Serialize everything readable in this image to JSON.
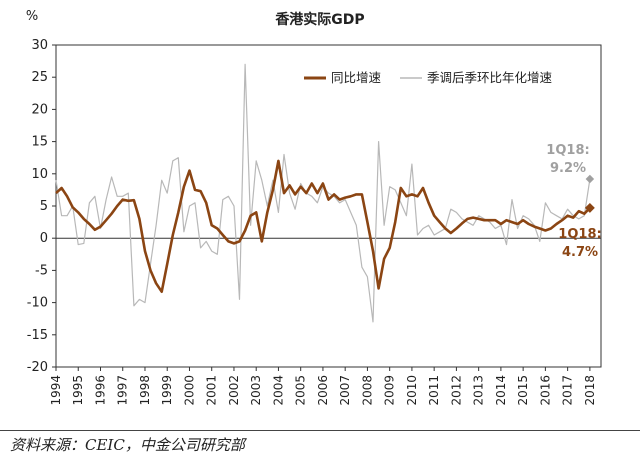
{
  "chart_data": {
    "type": "line",
    "title": "香港实际GDP",
    "unit_label": "%",
    "ylim": [
      -20,
      30
    ],
    "yticks": [
      30,
      25,
      20,
      15,
      10,
      5,
      0,
      -5,
      -10,
      -15,
      -20
    ],
    "xlim": [
      1994,
      2018.5
    ],
    "xticks": [
      "1994",
      "1995",
      "1996",
      "1997",
      "1998",
      "1999",
      "2000",
      "2001",
      "2002",
      "2003",
      "2004",
      "2005",
      "2006",
      "2007",
      "2008",
      "2009",
      "2010",
      "2011",
      "2012",
      "2013",
      "2014",
      "2015",
      "2016",
      "2017",
      "2018"
    ],
    "grid": false,
    "legend_position": "top-right",
    "series": [
      {
        "name": "同比增速",
        "color": "#8B4513",
        "x": [
          1994.0,
          1994.25,
          1994.5,
          1994.75,
          1995.0,
          1995.25,
          1995.5,
          1995.75,
          1996.0,
          1996.25,
          1996.5,
          1996.75,
          1997.0,
          1997.25,
          1997.5,
          1997.75,
          1998.0,
          1998.25,
          1998.5,
          1998.75,
          1999.0,
          1999.25,
          1999.5,
          1999.75,
          2000.0,
          2000.25,
          2000.5,
          2000.75,
          2001.0,
          2001.25,
          2001.5,
          2001.75,
          2002.0,
          2002.25,
          2002.5,
          2002.75,
          2003.0,
          2003.25,
          2003.5,
          2003.75,
          2004.0,
          2004.25,
          2004.5,
          2004.75,
          2005.0,
          2005.25,
          2005.5,
          2005.75,
          2006.0,
          2006.25,
          2006.5,
          2006.75,
          2007.0,
          2007.25,
          2007.5,
          2007.75,
          2008.0,
          2008.25,
          2008.5,
          2008.75,
          2009.0,
          2009.25,
          2009.5,
          2009.75,
          2010.0,
          2010.25,
          2010.5,
          2010.75,
          2011.0,
          2011.25,
          2011.5,
          2011.75,
          2012.0,
          2012.25,
          2012.5,
          2012.75,
          2013.0,
          2013.25,
          2013.5,
          2013.75,
          2014.0,
          2014.25,
          2014.5,
          2014.75,
          2015.0,
          2015.25,
          2015.5,
          2015.75,
          2016.0,
          2016.25,
          2016.5,
          2016.75,
          2017.0,
          2017.25,
          2017.5,
          2017.75,
          2018.0
        ],
        "values": [
          7.0,
          7.8,
          6.5,
          4.8,
          4.0,
          3.0,
          2.2,
          1.3,
          1.8,
          2.8,
          3.8,
          5.0,
          6.0,
          5.8,
          5.9,
          3.0,
          -2.0,
          -5.0,
          -7.0,
          -8.3,
          -4.0,
          0.5,
          4.0,
          8.0,
          10.5,
          7.5,
          7.3,
          5.5,
          2.0,
          1.5,
          0.5,
          -0.5,
          -0.8,
          -0.5,
          1.2,
          3.5,
          4.0,
          -0.5,
          4.0,
          7.5,
          12.0,
          7.0,
          8.2,
          6.8,
          8.0,
          7.0,
          8.5,
          7.0,
          8.5,
          6.0,
          6.8,
          6.0,
          6.3,
          6.5,
          6.8,
          6.8,
          2.5,
          -2.0,
          -7.8,
          -3.2,
          -1.5,
          2.5,
          7.8,
          6.5,
          6.8,
          6.5,
          7.8,
          5.5,
          3.5,
          2.5,
          1.5,
          0.8,
          1.5,
          2.3,
          3.0,
          3.2,
          3.0,
          2.8,
          2.8,
          2.8,
          2.2,
          2.8,
          2.5,
          2.2,
          2.8,
          2.2,
          1.8,
          1.5,
          1.2,
          1.5,
          2.2,
          2.8,
          3.5,
          3.2,
          4.2,
          3.8,
          4.7
        ]
      },
      {
        "name": "季调后季环比年化增速",
        "color": "#B8B8B8",
        "x": [
          1994.0,
          1994.25,
          1994.5,
          1994.75,
          1995.0,
          1995.25,
          1995.5,
          1995.75,
          1996.0,
          1996.25,
          1996.5,
          1996.75,
          1997.0,
          1997.25,
          1997.5,
          1997.75,
          1998.0,
          1998.25,
          1998.5,
          1998.75,
          1999.0,
          1999.25,
          1999.5,
          1999.75,
          2000.0,
          2000.25,
          2000.5,
          2000.75,
          2001.0,
          2001.25,
          2001.5,
          2001.75,
          2002.0,
          2002.25,
          2002.5,
          2002.75,
          2003.0,
          2003.25,
          2003.5,
          2003.75,
          2004.0,
          2004.25,
          2004.5,
          2004.75,
          2005.0,
          2005.25,
          2005.5,
          2005.75,
          2006.0,
          2006.25,
          2006.5,
          2006.75,
          2007.0,
          2007.25,
          2007.5,
          2007.75,
          2008.0,
          2008.25,
          2008.5,
          2008.75,
          2009.0,
          2009.25,
          2009.5,
          2009.75,
          2010.0,
          2010.25,
          2010.5,
          2010.75,
          2011.0,
          2011.25,
          2011.5,
          2011.75,
          2012.0,
          2012.25,
          2012.5,
          2012.75,
          2013.0,
          2013.25,
          2013.5,
          2013.75,
          2014.0,
          2014.25,
          2014.5,
          2014.75,
          2015.0,
          2015.25,
          2015.5,
          2015.75,
          2016.0,
          2016.25,
          2016.5,
          2016.75,
          2017.0,
          2017.25,
          2017.5,
          2017.75,
          2018.0
        ],
        "values": [
          9.0,
          3.5,
          3.5,
          5.0,
          -1.0,
          -0.8,
          5.5,
          6.5,
          1.5,
          6.0,
          9.5,
          6.5,
          6.5,
          7.0,
          -10.5,
          -9.5,
          -10.0,
          -4.0,
          2.0,
          9.0,
          7.0,
          12.0,
          12.5,
          1.0,
          5.0,
          5.5,
          -1.5,
          -0.5,
          -2.0,
          -2.5,
          6.0,
          6.5,
          5.0,
          -9.5,
          27.0,
          2.0,
          12.0,
          9.0,
          5.0,
          9.0,
          4.0,
          13.0,
          7.0,
          4.5,
          8.5,
          7.0,
          6.5,
          5.5,
          8.0,
          7.0,
          6.5,
          5.5,
          6.0,
          4.0,
          2.0,
          -4.5,
          -6.0,
          -13.0,
          15.0,
          2.0,
          8.0,
          7.5,
          5.5,
          3.5,
          11.5,
          0.5,
          1.5,
          2.0,
          0.5,
          1.0,
          1.5,
          4.5,
          4.0,
          3.0,
          2.5,
          2.0,
          3.5,
          3.0,
          2.5,
          1.5,
          2.0,
          -1.0,
          6.0,
          1.5,
          3.5,
          3.0,
          2.0,
          -0.5,
          5.5,
          4.0,
          3.5,
          3.0,
          4.5,
          3.5,
          3.0,
          3.5,
          9.2
        ]
      }
    ],
    "annotations": [
      {
        "text_line1": "1Q18:",
        "text_line2": "9.2%",
        "color": "#A0A0A0"
      },
      {
        "text_line1": "1Q18:",
        "text_line2": "4.7%",
        "color": "#8B4513"
      }
    ]
  },
  "source": "资料来源：CEIC，中金公司研究部"
}
